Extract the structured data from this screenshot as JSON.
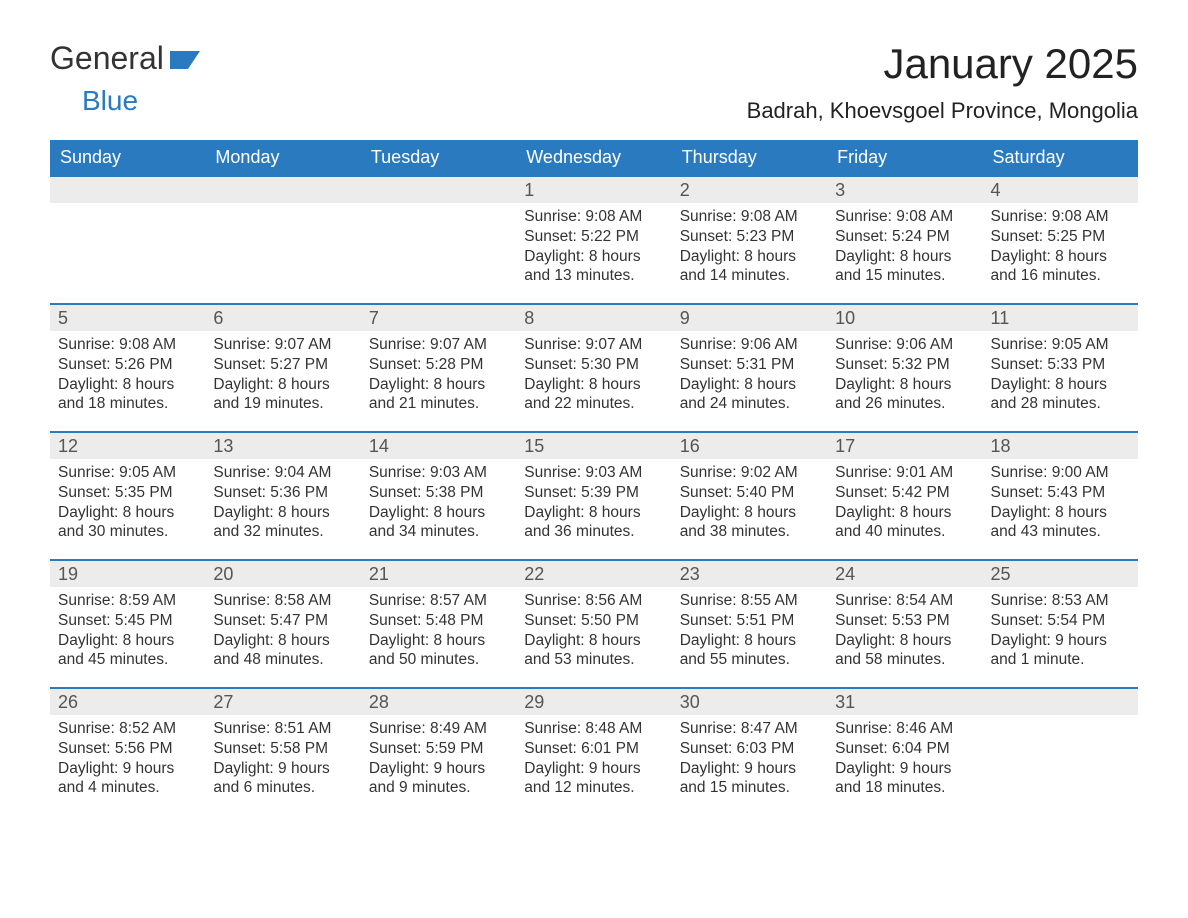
{
  "logo": {
    "general": "General",
    "blue": "Blue"
  },
  "title": "January 2025",
  "location": "Badrah, Khoevsgoel Province, Mongolia",
  "colors": {
    "header_bg": "#2a7ac0",
    "header_text": "#ffffff",
    "daynum_bg": "#ececec",
    "daynum_text": "#555555",
    "body_text": "#333333",
    "rule": "#2a7ac0",
    "page_bg": "#ffffff"
  },
  "weekdays": [
    "Sunday",
    "Monday",
    "Tuesday",
    "Wednesday",
    "Thursday",
    "Friday",
    "Saturday"
  ],
  "weeks": [
    [
      {
        "day": "",
        "lines": []
      },
      {
        "day": "",
        "lines": []
      },
      {
        "day": "",
        "lines": []
      },
      {
        "day": "1",
        "lines": [
          "Sunrise: 9:08 AM",
          "Sunset: 5:22 PM",
          "Daylight: 8 hours",
          "and 13 minutes."
        ]
      },
      {
        "day": "2",
        "lines": [
          "Sunrise: 9:08 AM",
          "Sunset: 5:23 PM",
          "Daylight: 8 hours",
          "and 14 minutes."
        ]
      },
      {
        "day": "3",
        "lines": [
          "Sunrise: 9:08 AM",
          "Sunset: 5:24 PM",
          "Daylight: 8 hours",
          "and 15 minutes."
        ]
      },
      {
        "day": "4",
        "lines": [
          "Sunrise: 9:08 AM",
          "Sunset: 5:25 PM",
          "Daylight: 8 hours",
          "and 16 minutes."
        ]
      }
    ],
    [
      {
        "day": "5",
        "lines": [
          "Sunrise: 9:08 AM",
          "Sunset: 5:26 PM",
          "Daylight: 8 hours",
          "and 18 minutes."
        ]
      },
      {
        "day": "6",
        "lines": [
          "Sunrise: 9:07 AM",
          "Sunset: 5:27 PM",
          "Daylight: 8 hours",
          "and 19 minutes."
        ]
      },
      {
        "day": "7",
        "lines": [
          "Sunrise: 9:07 AM",
          "Sunset: 5:28 PM",
          "Daylight: 8 hours",
          "and 21 minutes."
        ]
      },
      {
        "day": "8",
        "lines": [
          "Sunrise: 9:07 AM",
          "Sunset: 5:30 PM",
          "Daylight: 8 hours",
          "and 22 minutes."
        ]
      },
      {
        "day": "9",
        "lines": [
          "Sunrise: 9:06 AM",
          "Sunset: 5:31 PM",
          "Daylight: 8 hours",
          "and 24 minutes."
        ]
      },
      {
        "day": "10",
        "lines": [
          "Sunrise: 9:06 AM",
          "Sunset: 5:32 PM",
          "Daylight: 8 hours",
          "and 26 minutes."
        ]
      },
      {
        "day": "11",
        "lines": [
          "Sunrise: 9:05 AM",
          "Sunset: 5:33 PM",
          "Daylight: 8 hours",
          "and 28 minutes."
        ]
      }
    ],
    [
      {
        "day": "12",
        "lines": [
          "Sunrise: 9:05 AM",
          "Sunset: 5:35 PM",
          "Daylight: 8 hours",
          "and 30 minutes."
        ]
      },
      {
        "day": "13",
        "lines": [
          "Sunrise: 9:04 AM",
          "Sunset: 5:36 PM",
          "Daylight: 8 hours",
          "and 32 minutes."
        ]
      },
      {
        "day": "14",
        "lines": [
          "Sunrise: 9:03 AM",
          "Sunset: 5:38 PM",
          "Daylight: 8 hours",
          "and 34 minutes."
        ]
      },
      {
        "day": "15",
        "lines": [
          "Sunrise: 9:03 AM",
          "Sunset: 5:39 PM",
          "Daylight: 8 hours",
          "and 36 minutes."
        ]
      },
      {
        "day": "16",
        "lines": [
          "Sunrise: 9:02 AM",
          "Sunset: 5:40 PM",
          "Daylight: 8 hours",
          "and 38 minutes."
        ]
      },
      {
        "day": "17",
        "lines": [
          "Sunrise: 9:01 AM",
          "Sunset: 5:42 PM",
          "Daylight: 8 hours",
          "and 40 minutes."
        ]
      },
      {
        "day": "18",
        "lines": [
          "Sunrise: 9:00 AM",
          "Sunset: 5:43 PM",
          "Daylight: 8 hours",
          "and 43 minutes."
        ]
      }
    ],
    [
      {
        "day": "19",
        "lines": [
          "Sunrise: 8:59 AM",
          "Sunset: 5:45 PM",
          "Daylight: 8 hours",
          "and 45 minutes."
        ]
      },
      {
        "day": "20",
        "lines": [
          "Sunrise: 8:58 AM",
          "Sunset: 5:47 PM",
          "Daylight: 8 hours",
          "and 48 minutes."
        ]
      },
      {
        "day": "21",
        "lines": [
          "Sunrise: 8:57 AM",
          "Sunset: 5:48 PM",
          "Daylight: 8 hours",
          "and 50 minutes."
        ]
      },
      {
        "day": "22",
        "lines": [
          "Sunrise: 8:56 AM",
          "Sunset: 5:50 PM",
          "Daylight: 8 hours",
          "and 53 minutes."
        ]
      },
      {
        "day": "23",
        "lines": [
          "Sunrise: 8:55 AM",
          "Sunset: 5:51 PM",
          "Daylight: 8 hours",
          "and 55 minutes."
        ]
      },
      {
        "day": "24",
        "lines": [
          "Sunrise: 8:54 AM",
          "Sunset: 5:53 PM",
          "Daylight: 8 hours",
          "and 58 minutes."
        ]
      },
      {
        "day": "25",
        "lines": [
          "Sunrise: 8:53 AM",
          "Sunset: 5:54 PM",
          "Daylight: 9 hours",
          "and 1 minute."
        ]
      }
    ],
    [
      {
        "day": "26",
        "lines": [
          "Sunrise: 8:52 AM",
          "Sunset: 5:56 PM",
          "Daylight: 9 hours",
          "and 4 minutes."
        ]
      },
      {
        "day": "27",
        "lines": [
          "Sunrise: 8:51 AM",
          "Sunset: 5:58 PM",
          "Daylight: 9 hours",
          "and 6 minutes."
        ]
      },
      {
        "day": "28",
        "lines": [
          "Sunrise: 8:49 AM",
          "Sunset: 5:59 PM",
          "Daylight: 9 hours",
          "and 9 minutes."
        ]
      },
      {
        "day": "29",
        "lines": [
          "Sunrise: 8:48 AM",
          "Sunset: 6:01 PM",
          "Daylight: 9 hours",
          "and 12 minutes."
        ]
      },
      {
        "day": "30",
        "lines": [
          "Sunrise: 8:47 AM",
          "Sunset: 6:03 PM",
          "Daylight: 9 hours",
          "and 15 minutes."
        ]
      },
      {
        "day": "31",
        "lines": [
          "Sunrise: 8:46 AM",
          "Sunset: 6:04 PM",
          "Daylight: 9 hours",
          "and 18 minutes."
        ]
      },
      {
        "day": "",
        "lines": []
      }
    ]
  ]
}
